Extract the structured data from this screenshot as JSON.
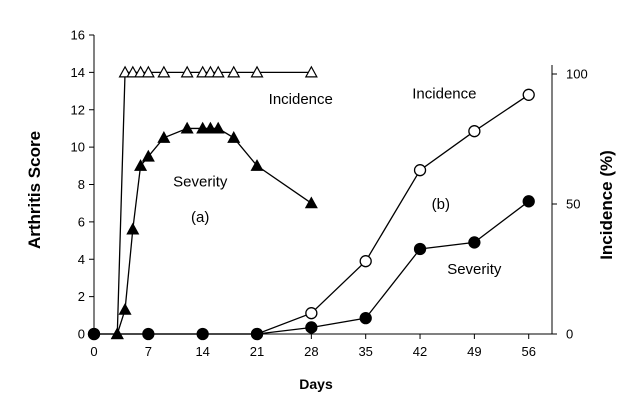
{
  "chart_data": {
    "type": "line",
    "title": "",
    "xlabel": "Days",
    "ylabel": "Arthritis Score",
    "y2label": "Incidence (%)",
    "xlim": [
      0,
      59
    ],
    "ylim": [
      0,
      16
    ],
    "y2lim": [
      0,
      100
    ],
    "x_ticks": [
      0,
      7,
      14,
      21,
      28,
      35,
      42,
      49,
      56
    ],
    "y_ticks": [
      0,
      2,
      4,
      6,
      8,
      10,
      12,
      14,
      16
    ],
    "y2_ticks": [
      0,
      50,
      100
    ],
    "grid": false,
    "legend": "none",
    "series": [
      {
        "key": "a_incidence",
        "axis": "left",
        "marker": "triangle-open",
        "x": [
          3,
          4,
          5,
          6,
          7,
          9,
          12,
          14,
          15,
          16,
          18,
          21,
          28
        ],
        "y": [
          0,
          14,
          14,
          14,
          14,
          14,
          14,
          14,
          14,
          14,
          14,
          14,
          14
        ]
      },
      {
        "key": "a_severity",
        "axis": "left",
        "marker": "triangle-filled",
        "x": [
          3,
          4,
          5,
          6,
          7,
          9,
          12,
          14,
          15,
          16,
          18,
          21,
          28
        ],
        "y": [
          0,
          1.3,
          5.6,
          9,
          9.5,
          10.5,
          11,
          11,
          11,
          11,
          10.5,
          9,
          7
        ]
      },
      {
        "key": "b_incidence",
        "axis": "right",
        "marker": "circle-open",
        "x": [
          0,
          21,
          28,
          35,
          42,
          49,
          56
        ],
        "y": [
          0,
          0,
          8,
          28,
          63,
          78,
          92
        ]
      },
      {
        "key": "b_severity",
        "axis": "left",
        "marker": "circle-filled",
        "x": [
          0,
          7,
          14,
          21,
          28,
          35,
          42,
          49,
          56
        ],
        "y": [
          0,
          0,
          0,
          0,
          0.35,
          0.85,
          4.55,
          4.9,
          7.1
        ]
      }
    ],
    "annotations": [
      {
        "text": "Incidence",
        "x": 22.5,
        "y": 12.3
      },
      {
        "text": "Severity",
        "x": 10.2,
        "y": 7.9
      },
      {
        "text": "(a)",
        "x": 12.5,
        "y": 6.0
      },
      {
        "text": "Incidence",
        "x": 41,
        "y": 12.6
      },
      {
        "text": "(b)",
        "x": 43.5,
        "y": 6.7
      },
      {
        "text": "Severity",
        "x": 45.5,
        "y": 3.2
      }
    ]
  }
}
